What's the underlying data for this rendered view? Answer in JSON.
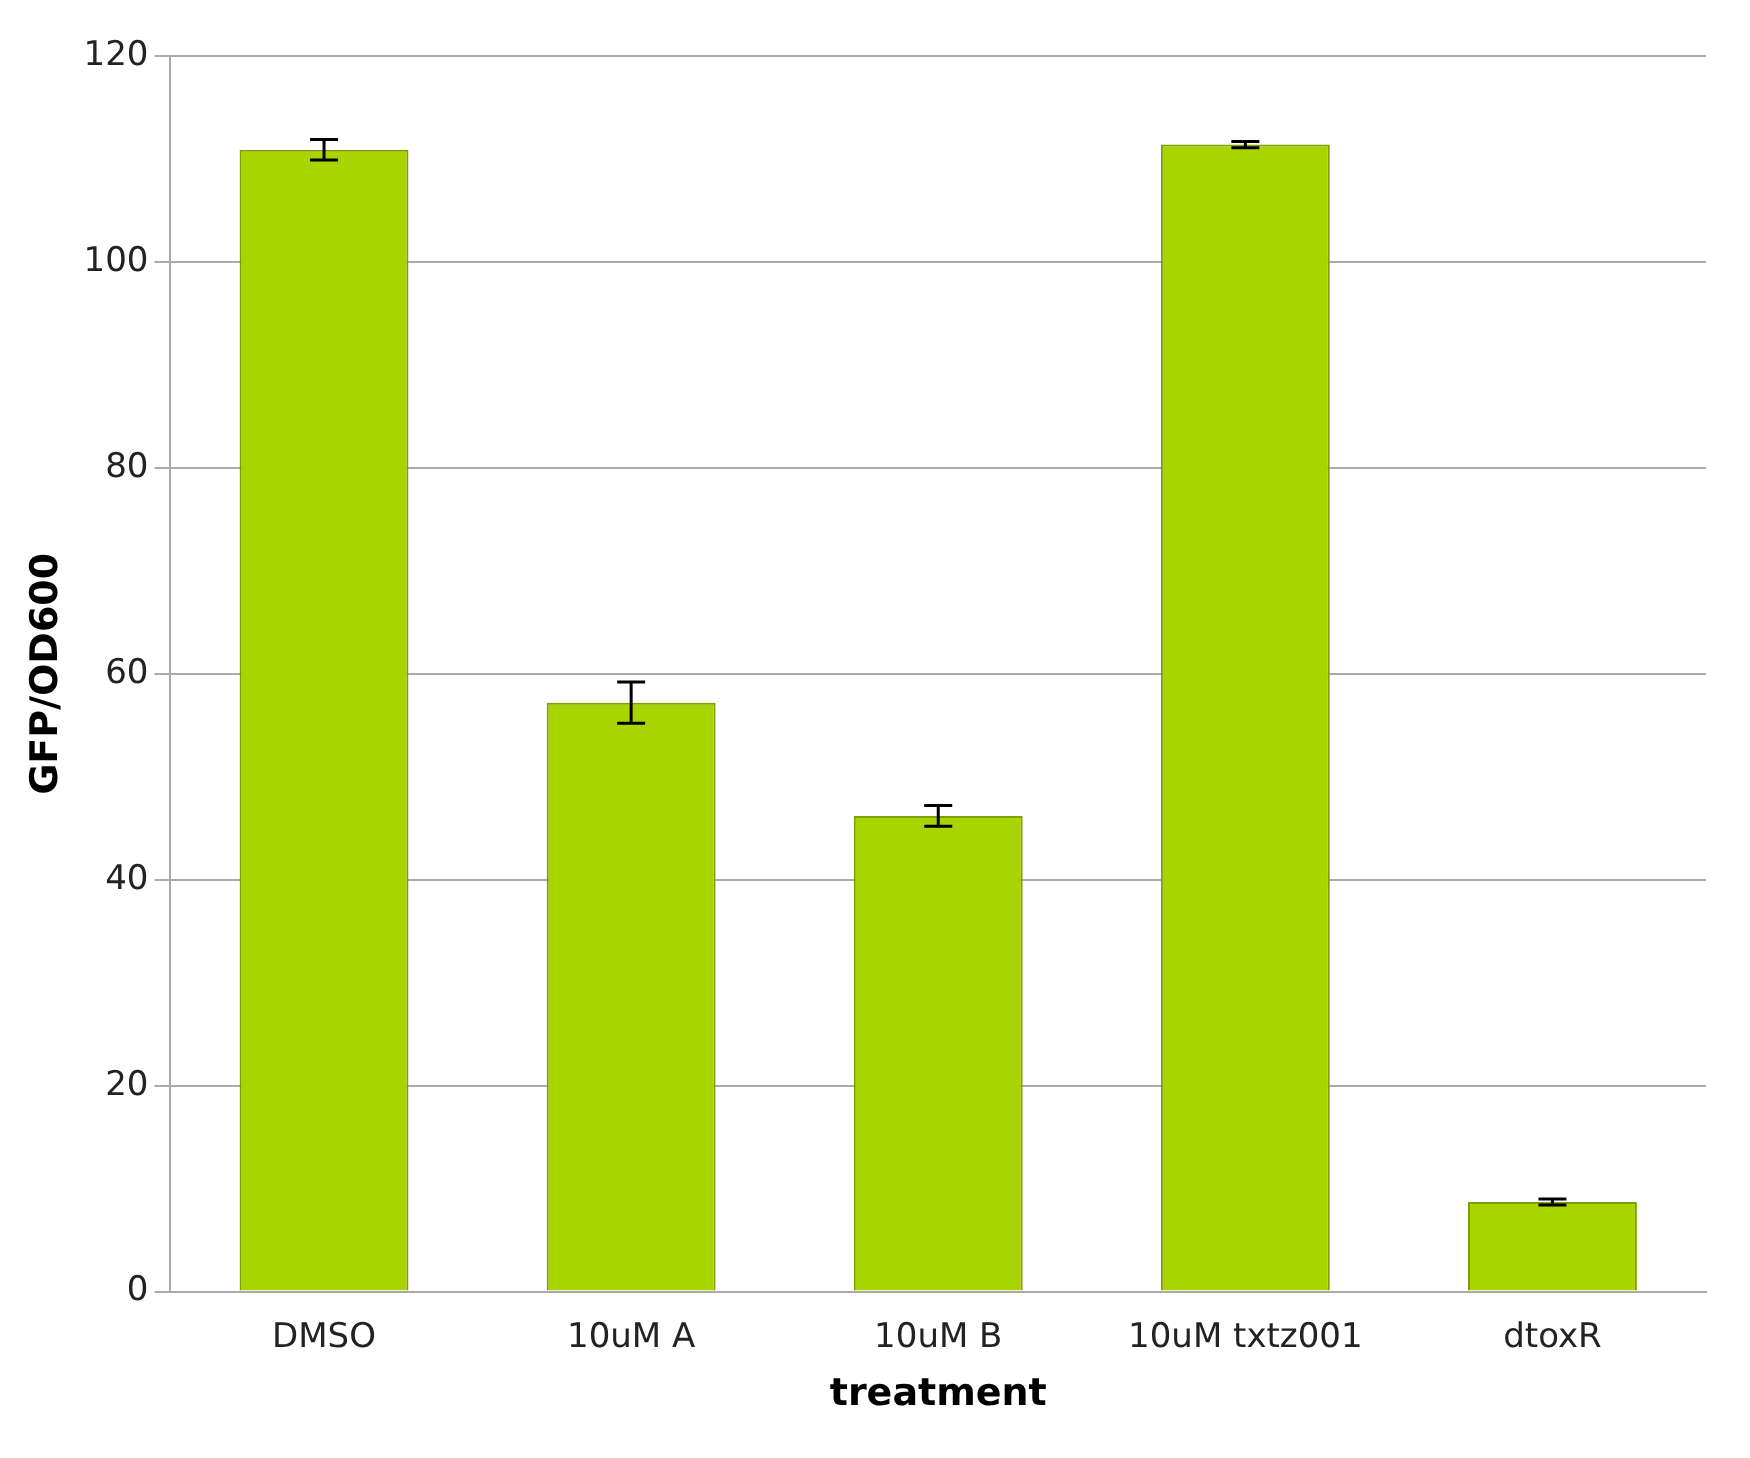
{
  "chart_data": {
    "type": "bar",
    "xlabel": "treatment",
    "ylabel": "GFP/OD600",
    "categories": [
      "DMSO",
      "10uM A",
      "10uM B",
      "10uM txtz001",
      "dtoxR"
    ],
    "values": [
      110.9,
      57.2,
      46.2,
      111.4,
      8.7
    ],
    "errors": [
      1,
      2,
      1,
      0.3,
      0.3
    ],
    "color": "#a8d400",
    "ylim": [
      0,
      120
    ],
    "yticks": [
      0,
      20,
      40,
      60,
      80,
      100,
      120
    ],
    "grid": "y",
    "legend": false
  }
}
